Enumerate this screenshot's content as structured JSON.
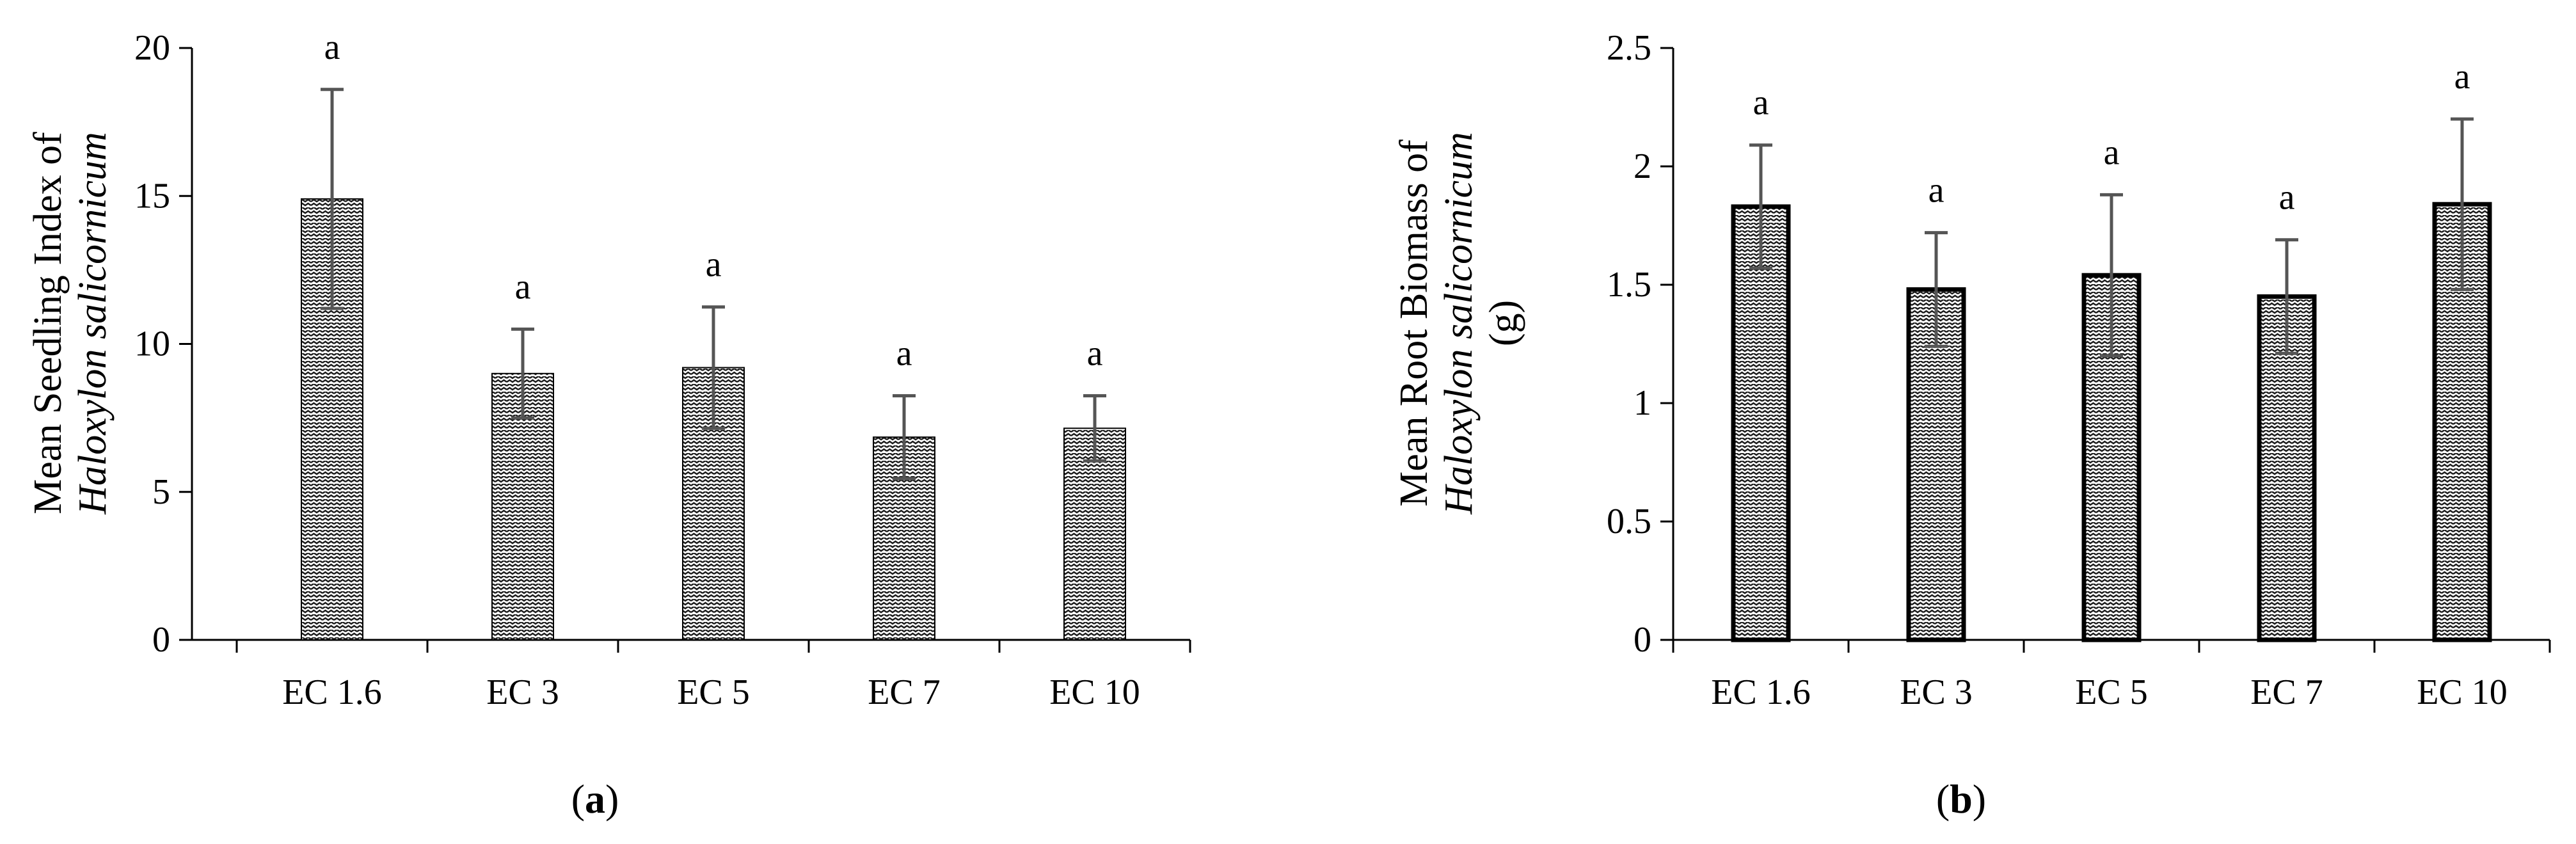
{
  "chart_data": [
    {
      "panel_label": "a",
      "type": "bar",
      "ylabel_line1": "Mean Seedling Index of",
      "ylabel_line2": "Haloxylon salicornicum",
      "ylabel_line3": "",
      "categories": [
        "EC 1.6",
        "EC 3",
        "EC 5",
        "EC 7",
        "EC 10"
      ],
      "values": [
        14.9,
        9.0,
        9.2,
        6.85,
        7.15
      ],
      "errors": [
        3.7,
        1.5,
        2.05,
        1.4,
        1.1
      ],
      "letters": [
        "a",
        "a",
        "a",
        "a",
        "a"
      ],
      "yticks": [
        "0",
        "5",
        "10",
        "15",
        "20"
      ],
      "ylim": [
        0,
        20
      ],
      "grid": false
    },
    {
      "panel_label": "b",
      "type": "bar",
      "ylabel_line1": "Mean Root Biomass of",
      "ylabel_line2": "Haloxylon salicornicum",
      "ylabel_line3": "(g)",
      "categories": [
        "EC 1.6",
        "EC 3",
        "EC 5",
        "EC 7",
        "EC 10"
      ],
      "values": [
        1.83,
        1.48,
        1.54,
        1.45,
        1.84
      ],
      "errors": [
        0.26,
        0.24,
        0.34,
        0.24,
        0.36
      ],
      "letters": [
        "a",
        "a",
        "a",
        "a",
        "a"
      ],
      "yticks": [
        "0",
        "0.5",
        "1",
        "1.5",
        "2",
        "2.5"
      ],
      "ylim": [
        0,
        2.5
      ],
      "grid": false
    }
  ],
  "colors": {
    "axis": "#000000",
    "error_bar": "#555555",
    "bar_fill_pattern": "zigzag"
  }
}
